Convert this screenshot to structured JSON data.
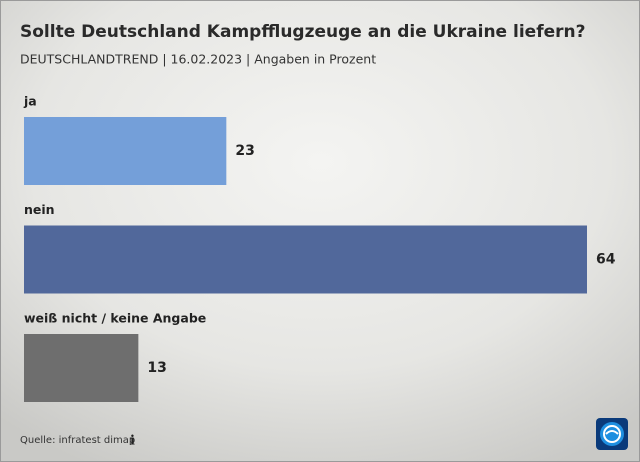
{
  "chart_data": {
    "type": "bar",
    "title": "Sollte Deutschland Kampfflugzeuge an die Ukraine liefern?",
    "subtitle": "DEUTSCHLANDTREND | 16.02.2023 | Angaben in Prozent",
    "categories": [
      "ja",
      "nein",
      "weiß nicht / keine Angabe"
    ],
    "values": [
      23,
      64,
      13
    ],
    "colors": [
      "#749fd9",
      "#51689b",
      "#6e6e6e"
    ],
    "source": "Quelle: infratest dimap"
  }
}
